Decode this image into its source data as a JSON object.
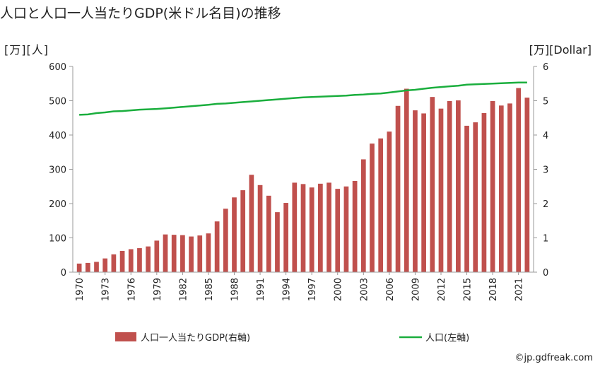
{
  "title": "人口と人口一人当たりGDP(米ドル名目)の推移",
  "left_unit": "[万][人]",
  "right_unit": "[万][Dollar]",
  "copyright": "©jp.gdfreak.com",
  "colors": {
    "bar": "#c0504d",
    "line": "#1aae3d",
    "axis": "#999999",
    "grid": "#dddddd"
  },
  "chart_data": {
    "type": "bar+line",
    "x": [
      1970,
      1971,
      1972,
      1973,
      1974,
      1975,
      1976,
      1977,
      1978,
      1979,
      1980,
      1981,
      1982,
      1983,
      1984,
      1985,
      1986,
      1987,
      1988,
      1989,
      1990,
      1991,
      1992,
      1993,
      1994,
      1995,
      1996,
      1997,
      1998,
      1999,
      2000,
      2001,
      2002,
      2003,
      2004,
      2005,
      2006,
      2007,
      2008,
      2009,
      2010,
      2011,
      2012,
      2013,
      2014,
      2015,
      2016,
      2017,
      2018,
      2019,
      2020,
      2021,
      2022
    ],
    "x_tick_labels": [
      "1970",
      "1973",
      "1976",
      "1979",
      "1982",
      "1985",
      "1988",
      "1991",
      "1994",
      "1997",
      "2000",
      "2003",
      "2006",
      "2009",
      "2012",
      "2015",
      "2018",
      "2021"
    ],
    "y_left": {
      "min": 0,
      "max": 600,
      "ticks": [
        "0",
        "100",
        "200",
        "300",
        "400",
        "500",
        "600"
      ]
    },
    "y_right": {
      "min": 0,
      "max": 6,
      "ticks": [
        "0",
        "1",
        "2",
        "3",
        "4",
        "5",
        "6"
      ]
    },
    "series": [
      {
        "name": "人口一人当たりGDP(右軸)",
        "type": "bar",
        "axis": "right",
        "values": [
          0.25,
          0.27,
          0.3,
          0.4,
          0.52,
          0.62,
          0.67,
          0.7,
          0.75,
          0.92,
          1.1,
          1.09,
          1.08,
          1.04,
          1.07,
          1.13,
          1.48,
          1.85,
          2.18,
          2.39,
          2.84,
          2.54,
          2.23,
          1.75,
          2.02,
          2.61,
          2.57,
          2.47,
          2.58,
          2.61,
          2.43,
          2.5,
          2.66,
          3.29,
          3.75,
          3.9,
          4.1,
          4.85,
          5.35,
          4.72,
          4.63,
          5.11,
          4.77,
          4.99,
          5.01,
          4.27,
          4.37,
          4.64,
          4.99,
          4.86,
          4.92,
          5.37,
          5.09
        ]
      },
      {
        "name": "人口(左軸)",
        "type": "line",
        "axis": "left",
        "values": [
          459,
          460,
          464,
          466,
          469,
          470,
          472,
          474,
          475,
          476,
          478,
          480,
          482,
          484,
          486,
          488,
          491,
          492,
          494,
          496,
          498,
          500,
          502,
          504,
          506,
          508,
          510,
          511,
          512,
          513,
          514,
          515,
          517,
          518,
          520,
          521,
          524,
          527,
          530,
          532,
          535,
          538,
          540,
          542,
          544,
          547,
          548,
          549,
          550,
          551,
          552,
          553,
          553
        ]
      }
    ]
  }
}
